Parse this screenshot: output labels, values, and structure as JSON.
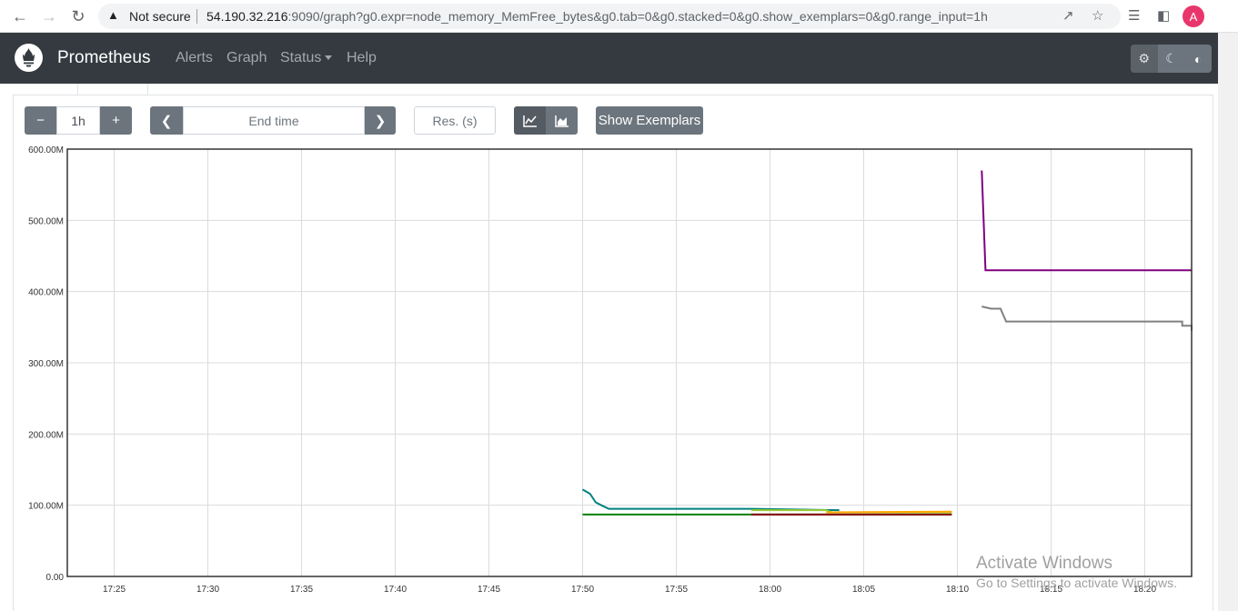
{
  "browser": {
    "security_label": "Not secure",
    "url_host": "54.190.32.216",
    "url_rest": ":9090/graph?g0.expr=node_memory_MemFree_bytes&g0.tab=0&g0.stacked=0&g0.show_exemplars=0&g0.range_input=1h",
    "profile_initial": "A",
    "icons": [
      "back-arrow-icon",
      "forward-arrow-icon",
      "reload-icon",
      "warning-icon",
      "share-icon",
      "star-icon",
      "reading-list-icon",
      "side-panel-icon"
    ]
  },
  "navbar": {
    "brand": "Prometheus",
    "links": [
      "Alerts",
      "Graph",
      "Status",
      "Help"
    ],
    "theme_icons": [
      "gear-icon",
      "moon-icon",
      "contrast-icon"
    ]
  },
  "controls": {
    "range_minus": "−",
    "range_value": "1h",
    "range_plus": "+",
    "end_time_placeholder": "End time",
    "resolution_placeholder": "Res. (s)",
    "show_exemplars": "Show Exemplars"
  },
  "chart_data": {
    "type": "line",
    "y_ticks": [
      "600.00M",
      "500.00M",
      "400.00M",
      "300.00M",
      "200.00M",
      "100.00M",
      "0.00"
    ],
    "x_ticks": [
      "17:25",
      "17:30",
      "17:35",
      "17:40",
      "17:45",
      "17:50",
      "17:55",
      "18:00",
      "18:05",
      "18:10",
      "18:15",
      "18:20"
    ],
    "ylim": [
      0,
      600
    ],
    "y_unit": "M",
    "x_start": "17:22.5",
    "x_end": "18:22.5",
    "grid": true,
    "series": [
      {
        "color": "#800080",
        "points": [
          [
            "18:11.3",
            570
          ],
          [
            "18:11.5",
            430
          ],
          [
            "18:22.5",
            430
          ]
        ]
      },
      {
        "color": "#808080",
        "points": [
          [
            "18:11.3",
            379
          ],
          [
            "18:11.8",
            376
          ],
          [
            "18:12.3",
            376
          ],
          [
            "18:12.6",
            358
          ],
          [
            "18:22",
            358
          ],
          [
            "18:22",
            352
          ],
          [
            "18:23",
            352
          ],
          [
            "18:23.1",
            345
          ],
          [
            "18:24",
            345
          ]
        ]
      },
      {
        "color": "#008080",
        "points": [
          [
            "17:50",
            122
          ],
          [
            "17:50.4",
            116
          ],
          [
            "17:50.7",
            104
          ],
          [
            "17:51",
            100
          ],
          [
            "17:51.4",
            95
          ],
          [
            "17:59",
            95
          ],
          [
            "18:03.7",
            93
          ]
        ]
      },
      {
        "color": "#008000",
        "points": [
          [
            "17:50",
            87
          ],
          [
            "18:09.7",
            87
          ]
        ]
      },
      {
        "color": "#9acd32",
        "points": [
          [
            "17:59",
            93
          ],
          [
            "18:03",
            93
          ],
          [
            "18:03.3",
            90
          ],
          [
            "18:09.7",
            90
          ]
        ]
      },
      {
        "color": "#ffa500",
        "points": [
          [
            "18:03",
            90
          ],
          [
            "18:09.7",
            91
          ]
        ]
      },
      {
        "color": "#8b0000",
        "points": [
          [
            "17:59",
            87
          ],
          [
            "18:09.7",
            87
          ]
        ]
      }
    ]
  },
  "watermark": {
    "line1": "Activate Windows",
    "line2": "Go to Settings to activate Windows."
  }
}
